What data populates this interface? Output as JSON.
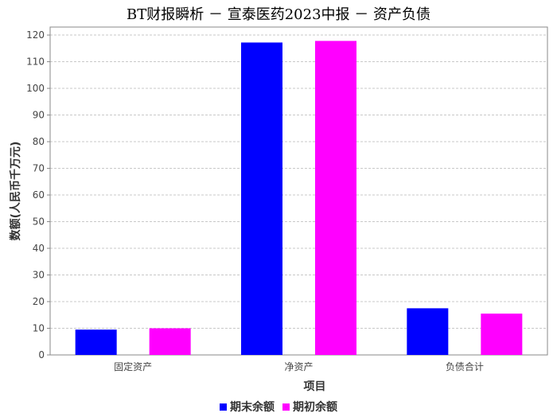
{
  "chart_data": {
    "type": "bar",
    "title": "BT财报瞬析 － 宣泰医药2023中报 － 资产负债",
    "xlabel": "项目",
    "ylabel": "数额(人民币千万元)",
    "categories": [
      "固定资产",
      "净资产",
      "负债合计"
    ],
    "series": [
      {
        "name": "期末余额",
        "color": "#0000ff",
        "values": [
          9.5,
          117.2,
          17.5
        ]
      },
      {
        "name": "期初余额",
        "color": "#ff00ff",
        "values": [
          10.0,
          117.8,
          15.5
        ]
      }
    ],
    "ylim": [
      0,
      123
    ],
    "yticks": [
      0,
      10,
      20,
      30,
      40,
      50,
      60,
      70,
      80,
      90,
      100,
      110,
      120
    ],
    "grid": true,
    "legend_position": "bottom"
  }
}
